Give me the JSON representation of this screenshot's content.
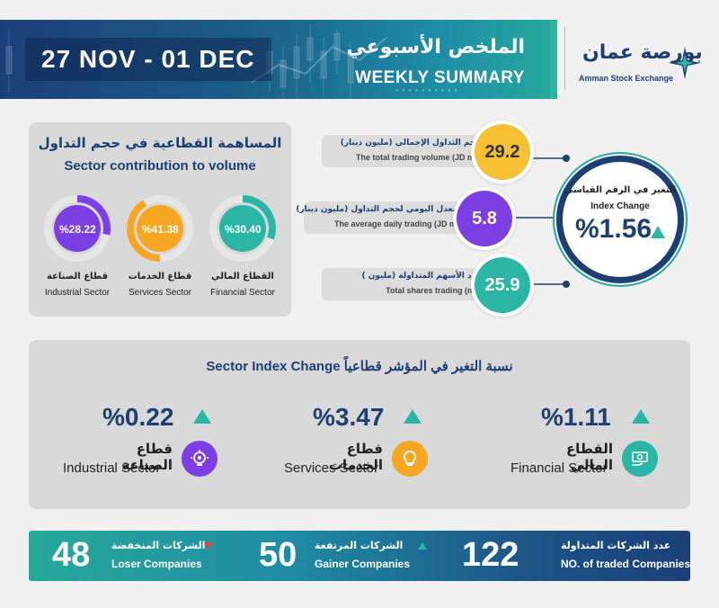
{
  "header": {
    "date_range": "27 NOV - 01 DEC",
    "title_ar": "الملخص الأسبوعي",
    "title_en": "WEEKLY SUMMARY"
  },
  "logo": {
    "name_ar": "بورصة عمان",
    "name_en": "Amman Stock Exchange"
  },
  "sector_contribution": {
    "title_ar": "المساهمة القطاعية في حجم التداول",
    "title_en": "Sector contribution to volume",
    "sectors": [
      {
        "label": "%28.22",
        "value": 28.22,
        "name_ar": "قطاع الصناعة",
        "name_en": "Industrial Sector",
        "color": "#7b3fe4"
      },
      {
        "label": "%41.38",
        "value": 41.38,
        "name_ar": "قطاع الخدمات",
        "name_en": "Services Sector",
        "color": "#f5a623"
      },
      {
        "label": "%30.40",
        "value": 30.4,
        "name_ar": "القطاع المالي",
        "name_en": "Financial Sector",
        "color": "#2bb5a5"
      }
    ]
  },
  "stats": [
    {
      "value": "29.2",
      "label_ar": "حجم التداول الإجمالي (مليون دينار)",
      "label_en": "The total trading volume (JD mil)",
      "color": "#f5c033"
    },
    {
      "value": "5.8",
      "label_ar": "المعدل اليومي لحجم التداول (مليون دينار)",
      "label_en": "The average daily trading (JD mil)",
      "color": "#7b3fe4"
    },
    {
      "value": "25.9",
      "label_ar": "عدد الأسهم المتداولة (مليون )",
      "label_en": "Total shares trading (mil)",
      "color": "#2bb5a5"
    }
  ],
  "index_change": {
    "label_ar": "التغير في الرقم القياسي",
    "label_en": "Index Change",
    "value": "%1.56",
    "direction": "up"
  },
  "sector_index_change": {
    "title": "Sector Index Change  نسبة التغير في المؤشر قطاعياً",
    "sectors": [
      {
        "value": "%0.22",
        "name_ar": "قطاع الصناعة",
        "name_en": "Industrial Sector",
        "icon": "gear-bulb-icon",
        "color": "#7b3fe4"
      },
      {
        "value": "%3.47",
        "name_ar": "قطاع الخدمات",
        "name_en": "Services Sector",
        "icon": "lightbulb-icon",
        "color": "#f5a623"
      },
      {
        "value": "%1.11",
        "name_ar": "القطاع المالي",
        "name_en": "Financial Sector",
        "icon": "money-hand-icon",
        "color": "#2bb5a5"
      }
    ]
  },
  "footer": {
    "losers": {
      "count": "48",
      "label_ar": "الشركات المنخفضة",
      "label_en": "Loser Companies"
    },
    "gainers": {
      "count": "50",
      "label_ar": "الشركات المرتفعة",
      "label_en": "Gainer Companies"
    },
    "traded": {
      "count": "122",
      "label_ar": "عدد الشركات المتداولة",
      "label_en": "NO. of traded Companies"
    }
  },
  "colors": {
    "navy": "#1d3f73",
    "teal": "#27a99a",
    "up": "#2bb5a5",
    "down": "#e2434b"
  }
}
